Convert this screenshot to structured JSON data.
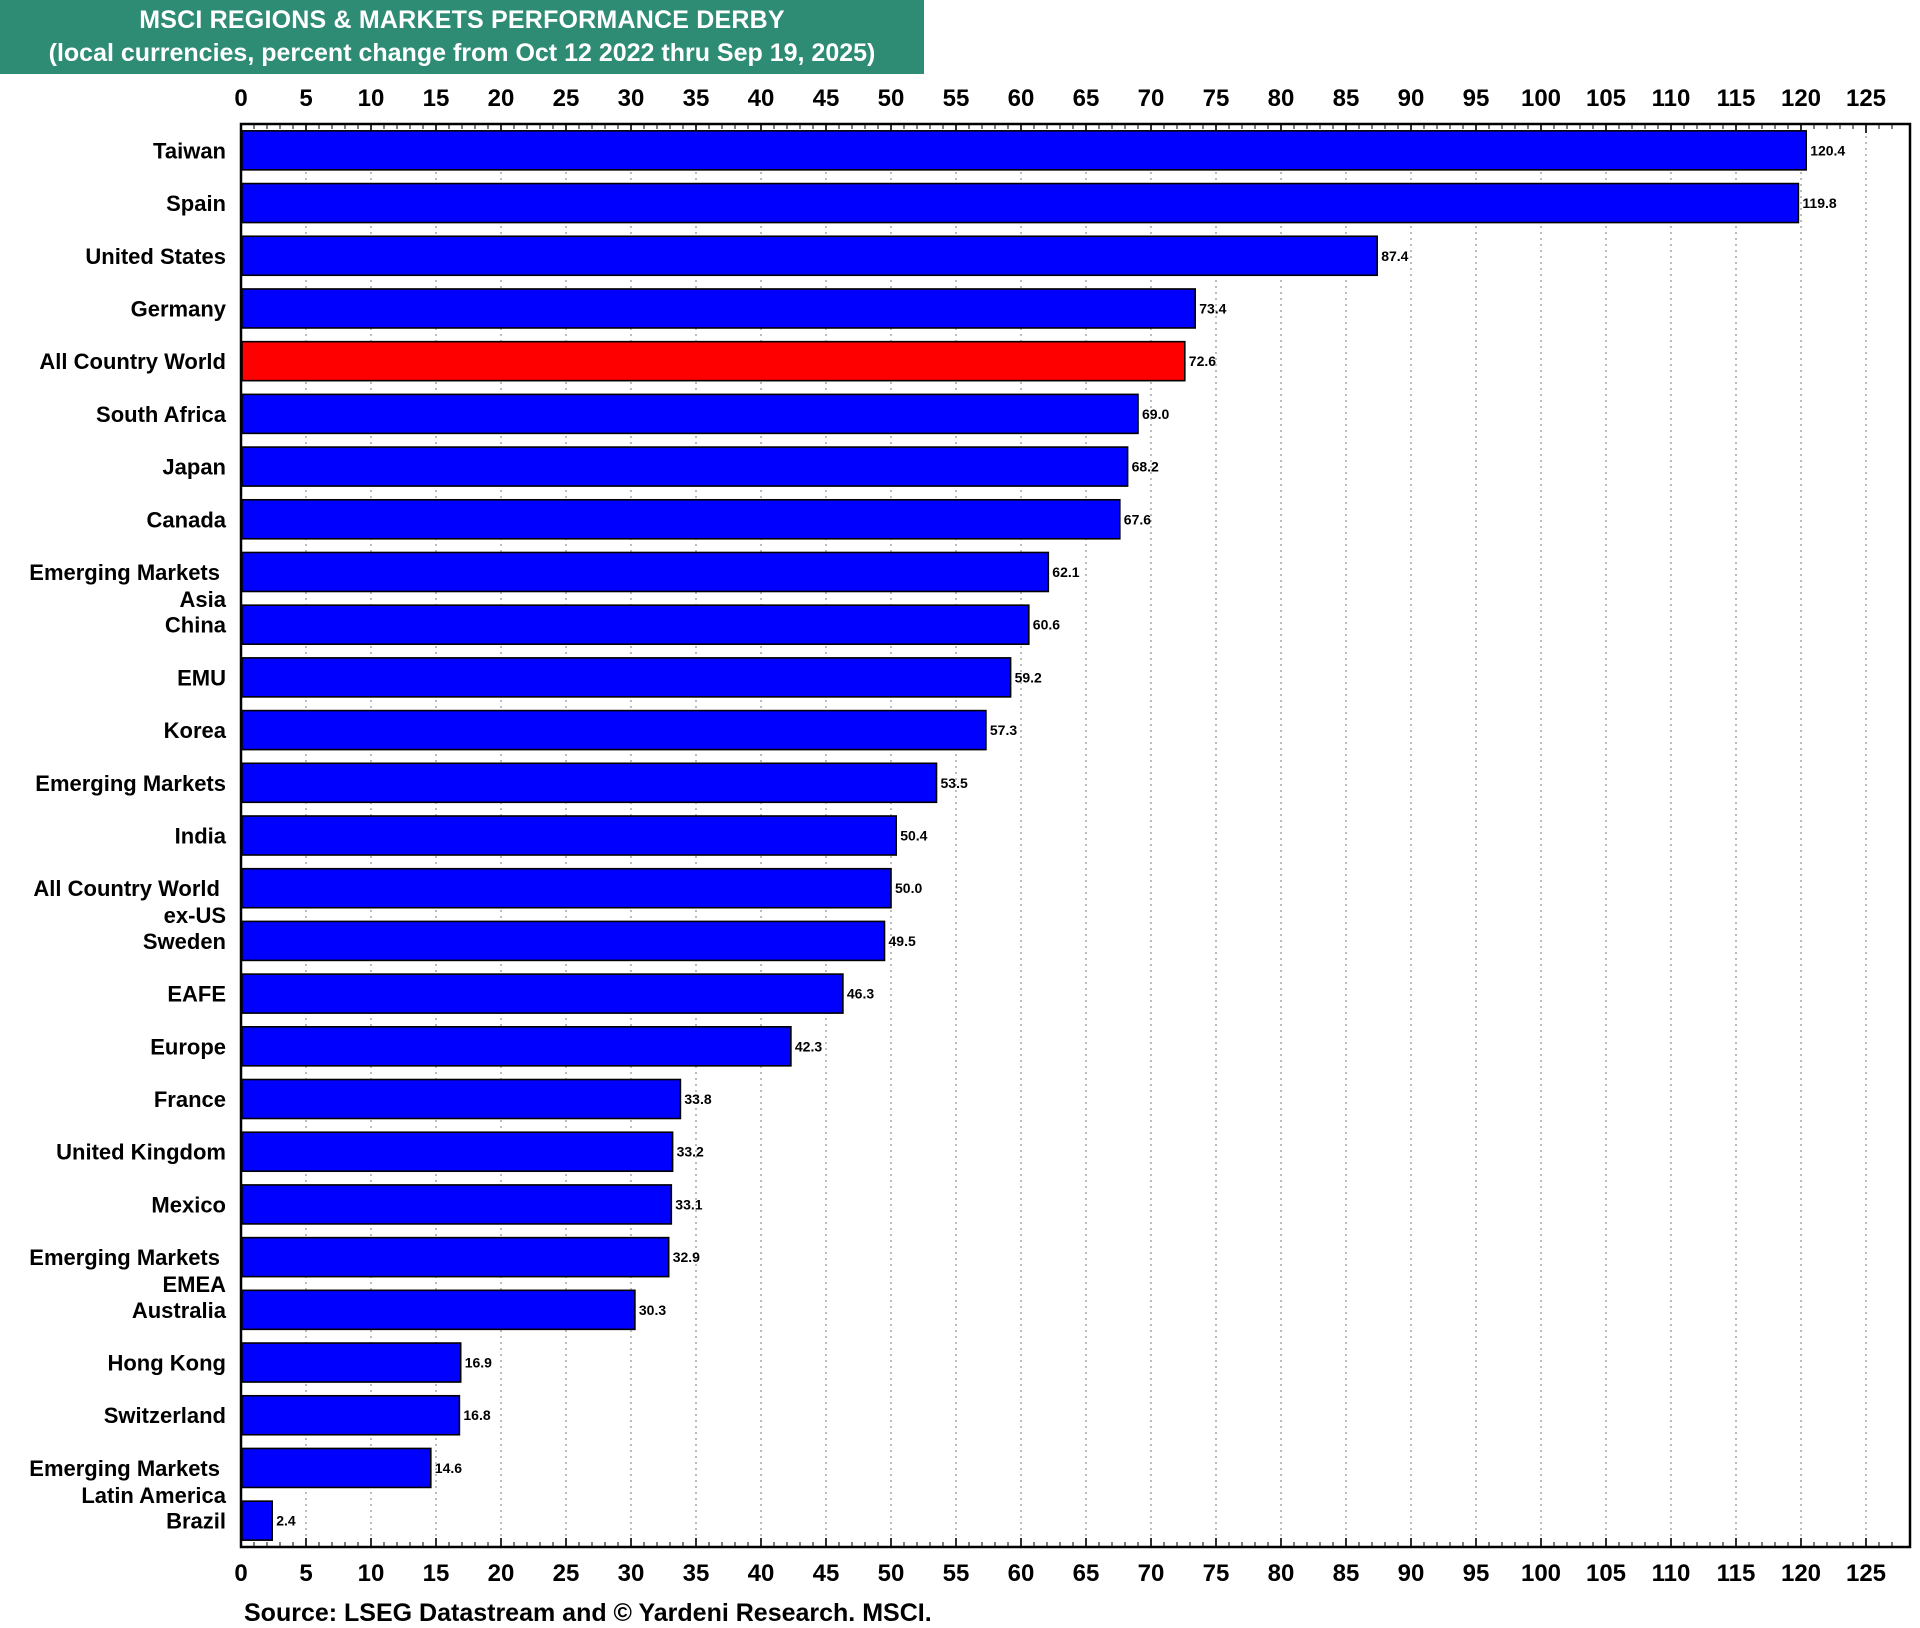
{
  "chart_data": {
    "type": "bar",
    "orientation": "horizontal",
    "title": "MSCI REGIONS & MARKETS PERFORMANCE DERBY",
    "subtitle": "(local currencies, percent change from Oct 12 2022 thru Sep 19, 2025)",
    "xlabel": "",
    "ylabel": "",
    "xlim": [
      0,
      127
    ],
    "xticks": [
      "0",
      "5",
      "10",
      "15",
      "20",
      "25",
      "30",
      "35",
      "40",
      "45",
      "50",
      "55",
      "60",
      "65",
      "70",
      "75",
      "80",
      "85",
      "90",
      "95",
      "100",
      "105",
      "110",
      "115",
      "120",
      "125"
    ],
    "grid": "vertical dotted",
    "legend": "none",
    "categories": [
      [
        "Taiwan"
      ],
      [
        "Spain"
      ],
      [
        "United States"
      ],
      [
        "Germany"
      ],
      [
        "All Country World"
      ],
      [
        "South Africa"
      ],
      [
        "Japan"
      ],
      [
        "Canada"
      ],
      [
        "Emerging Markets",
        "Asia"
      ],
      [
        "China"
      ],
      [
        "EMU"
      ],
      [
        "Korea"
      ],
      [
        "Emerging Markets"
      ],
      [
        "India"
      ],
      [
        "All Country World",
        "ex-US"
      ],
      [
        "Sweden"
      ],
      [
        "EAFE"
      ],
      [
        "Europe"
      ],
      [
        "France"
      ],
      [
        "United Kingdom"
      ],
      [
        "Mexico"
      ],
      [
        "Emerging Markets",
        "EMEA"
      ],
      [
        "Australia"
      ],
      [
        "Hong Kong"
      ],
      [
        "Switzerland"
      ],
      [
        "Emerging Markets",
        "Latin America"
      ],
      [
        "Brazil"
      ]
    ],
    "values": [
      120.4,
      119.8,
      87.4,
      73.4,
      72.6,
      69.0,
      68.2,
      67.6,
      62.1,
      60.6,
      59.2,
      57.3,
      53.5,
      50.4,
      50.0,
      49.5,
      46.3,
      42.3,
      33.8,
      33.2,
      33.1,
      32.9,
      30.3,
      16.9,
      16.8,
      14.6,
      2.4
    ],
    "value_labels": [
      "120.4",
      "119.8",
      "87.4",
      "73.4",
      "72.6",
      "69.0",
      "68.2",
      "67.6",
      "62.1",
      "60.6",
      "59.2",
      "57.3",
      "53.5",
      "50.4",
      "50.0",
      "49.5",
      "46.3",
      "42.3",
      "33.8",
      "33.2",
      "33.1",
      "32.9",
      "30.3",
      "16.9",
      "16.8",
      "14.6",
      "2.4"
    ],
    "highlight_index": 4,
    "colors": {
      "bar": "#0000ff",
      "highlight": "#ff0000",
      "title_background": "#2e8b74",
      "grid": "#999999"
    }
  },
  "source": "Source: LSEG Datastream and © Yardeni Research. MSCI."
}
